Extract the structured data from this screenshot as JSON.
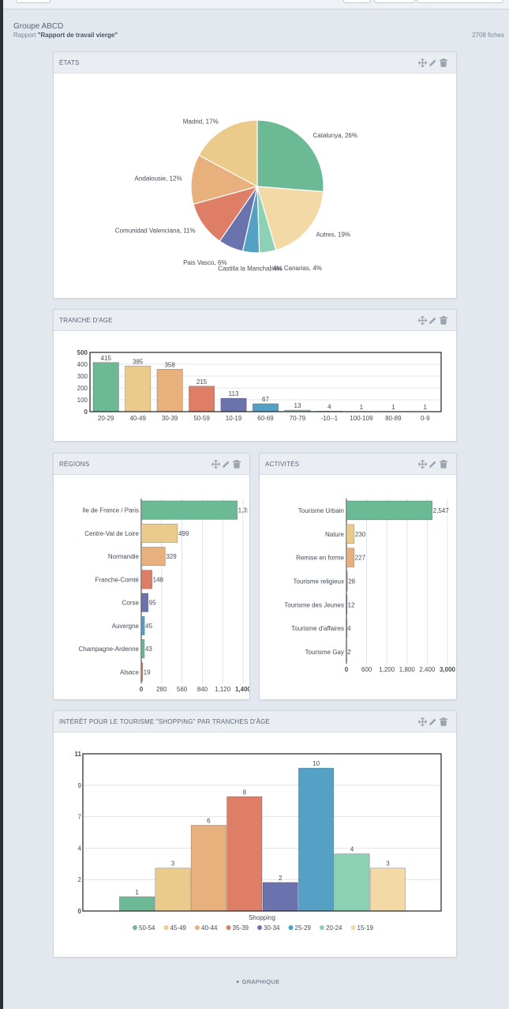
{
  "header": {
    "group_title": "Groupe ABCD",
    "report_prefix": "Rapport ",
    "report_name": "\"Rapport de travail vierge\"",
    "record_count": "2708 fiches"
  },
  "panels": {
    "etats": {
      "title": "ÉTATS"
    },
    "age": {
      "title": "TRANCHE D'AGE"
    },
    "regions": {
      "title": "RÉGIONS"
    },
    "activites": {
      "title": "ACTIVITÉS"
    },
    "shopping": {
      "title": "INTÉRÊT POUR LE TOURISME \"SHOPPING\" PAR TRANCHES D'ÂGE"
    }
  },
  "icons": [
    "move-icon",
    "edit-pencil-icon",
    "trash-icon"
  ],
  "add_graph": {
    "plus": "+",
    "label": "GRAPHIQUE"
  },
  "chart_data": [
    {
      "id": "etats",
      "type": "pie",
      "labels": [
        "Catalunya, 26%",
        "Autres, 19%",
        "Islas Canarias, 4%",
        "Castilla la Mancha, 4%",
        "Pais Vasco, 6%",
        "Comunidad Valenciana, 11%",
        "Andalousie, 12%",
        "Madrid, 17%"
      ],
      "categories": [
        "Catalunya",
        "Autres",
        "Islas Canarias",
        "Castilla la Mancha",
        "Pais Vasco",
        "Comunidad Valenciana",
        "Andalousie",
        "Madrid"
      ],
      "values": [
        26,
        19,
        4,
        4,
        6,
        11,
        12,
        17
      ],
      "colors": [
        "#6cb996",
        "#f2d9a6",
        "#8dd1b4",
        "#55a1c6",
        "#6a73ad",
        "#df7e66",
        "#e8b07c",
        "#ebcb8b"
      ]
    },
    {
      "id": "age",
      "type": "bar",
      "categories": [
        "20-29",
        "40-49",
        "30-39",
        "50-59",
        "10-19",
        "60-69",
        "70-79",
        "-10--1",
        "100-109",
        "80-89",
        "0-9"
      ],
      "values": [
        415,
        385,
        358,
        215,
        113,
        67,
        13,
        4,
        1,
        1,
        1
      ],
      "ylim": [
        0,
        500
      ],
      "yticks": [
        "0",
        "100",
        "200",
        "300",
        "400",
        "500"
      ],
      "colors": [
        "#6cb996",
        "#ebcb8b",
        "#e8b07c",
        "#df7e66",
        "#6a73ad",
        "#55a1c6",
        "#8dd1b4",
        "#f2d9a6",
        "#6cb996",
        "#ebcb8b",
        "#e8b07c"
      ]
    },
    {
      "id": "regions",
      "type": "bar",
      "orientation": "horizontal",
      "categories": [
        "Ile de France / Paris",
        "Centre-Val de Loire",
        "Normandie",
        "Franche-Comté",
        "Corse",
        "Auvergne",
        "Champagne-Ardenne",
        "Alsace"
      ],
      "values": [
        1320,
        499,
        329,
        148,
        95,
        45,
        43,
        19
      ],
      "value_labels": [
        "1,3:",
        "499",
        "329",
        "148",
        "95",
        "45",
        "43",
        "19"
      ],
      "xlim": [
        0,
        1400
      ],
      "xticks": [
        "0",
        "280",
        "560",
        "840",
        "1,120",
        "1,400"
      ],
      "colors": [
        "#6cb996",
        "#ebcb8b",
        "#e8b07c",
        "#df7e66",
        "#6a73ad",
        "#55a1c6",
        "#6cb996",
        "#df7e66"
      ]
    },
    {
      "id": "activites",
      "type": "bar",
      "orientation": "horizontal",
      "categories": [
        "Tourisme Urbain",
        "Nature",
        "Remise en forme",
        "Tourisme religieux",
        "Tourisme des Jeunes",
        "Tourisme d'affaires",
        "Tourisme Gay"
      ],
      "values": [
        2547,
        230,
        227,
        28,
        12,
        4,
        2
      ],
      "value_labels": [
        "2,547",
        "230",
        "227",
        "28",
        "12",
        "4",
        "2"
      ],
      "xlim": [
        0,
        3000
      ],
      "xticks": [
        "0",
        "600",
        "1,200",
        "1,800",
        "2,400",
        "3,000"
      ],
      "colors": [
        "#6cb996",
        "#ebcb8b",
        "#e8b07c",
        "#df7e66",
        "#6a73ad",
        "#55a1c6",
        "#8dd1b4"
      ]
    },
    {
      "id": "shopping",
      "type": "bar",
      "categories": [
        "Shopping"
      ],
      "xlabel": "Shopping",
      "ylim": [
        0,
        11
      ],
      "yticks": [
        "0",
        "2",
        "4",
        "7",
        "9",
        "11"
      ],
      "legend": "bottom",
      "series": [
        {
          "name": "50-54",
          "values": [
            1
          ],
          "color": "#6cb996"
        },
        {
          "name": "45-49",
          "values": [
            3
          ],
          "color": "#ebcb8b"
        },
        {
          "name": "40-44",
          "values": [
            6
          ],
          "color": "#e8b07c"
        },
        {
          "name": "35-39",
          "values": [
            8
          ],
          "color": "#df7e66"
        },
        {
          "name": "30-34",
          "values": [
            2
          ],
          "color": "#6a73ad"
        },
        {
          "name": "25-29",
          "values": [
            10
          ],
          "color": "#55a1c6"
        },
        {
          "name": "20-24",
          "values": [
            4
          ],
          "color": "#8dd1b4"
        },
        {
          "name": "15-19",
          "values": [
            3
          ],
          "color": "#f2d9a6"
        }
      ]
    }
  ]
}
